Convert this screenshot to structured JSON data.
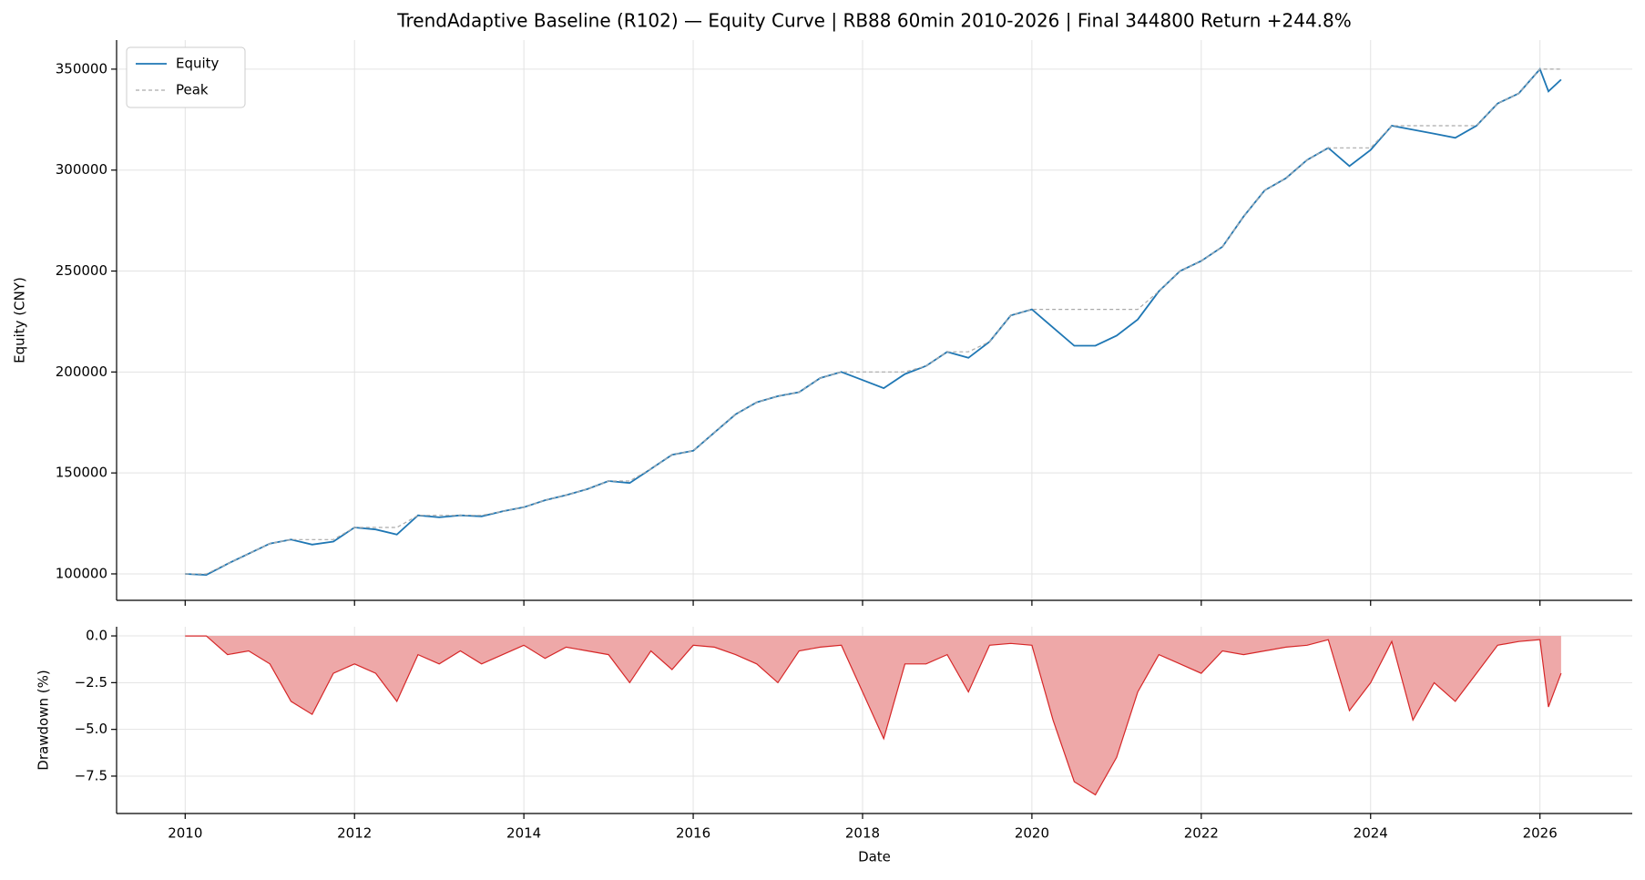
{
  "chart_data": [
    {
      "type": "line",
      "title": "TrendAdaptive Baseline (R102) — Equity Curve  |  RB88 60min 2010-2026  |  Final 344800  Return +244.8%",
      "ylabel": "Equity (CNY)",
      "legend": "upper left",
      "grid": true,
      "xlim": [
        2009.19,
        2027.09
      ],
      "xticks": [
        2010,
        2012,
        2014,
        2016,
        2018,
        2020,
        2022,
        2024,
        2026
      ],
      "ylim": [
        86900,
        364400
      ],
      "yticks": [
        100000,
        150000,
        200000,
        250000,
        300000,
        350000
      ],
      "x": [
        2010.0,
        2010.25,
        2010.5,
        2010.75,
        2011.0,
        2011.25,
        2011.5,
        2011.75,
        2012.0,
        2012.25,
        2012.5,
        2012.75,
        2013.0,
        2013.25,
        2013.5,
        2013.75,
        2014.0,
        2014.25,
        2014.5,
        2014.75,
        2015.0,
        2015.25,
        2015.5,
        2015.75,
        2016.0,
        2016.25,
        2016.5,
        2016.75,
        2017.0,
        2017.25,
        2017.5,
        2017.75,
        2018.0,
        2018.25,
        2018.5,
        2018.75,
        2019.0,
        2019.25,
        2019.5,
        2019.75,
        2020.0,
        2020.25,
        2020.5,
        2020.75,
        2021.0,
        2021.25,
        2021.5,
        2021.75,
        2022.0,
        2022.25,
        2022.5,
        2022.75,
        2023.0,
        2023.25,
        2023.5,
        2023.75,
        2024.0,
        2024.25,
        2024.5,
        2024.75,
        2025.0,
        2025.25,
        2025.5,
        2025.75,
        2026.0,
        2026.1,
        2026.25
      ],
      "series": [
        {
          "name": "Equity",
          "color": "#1f77b4",
          "style": "solid",
          "values": [
            100000,
            99500,
            105000,
            110000,
            115000,
            117000,
            114500,
            116000,
            123000,
            122000,
            119500,
            129000,
            128000,
            129000,
            128500,
            131000,
            133000,
            136500,
            139000,
            142000,
            146000,
            145000,
            152000,
            159000,
            161000,
            170000,
            179000,
            185000,
            188000,
            190000,
            197000,
            200000,
            196000,
            192000,
            199000,
            203000,
            210000,
            207000,
            215000,
            228000,
            231000,
            222000,
            213000,
            213000,
            218000,
            226000,
            240000,
            250000,
            255000,
            262000,
            277000,
            290000,
            296000,
            305000,
            311000,
            302000,
            310000,
            322000,
            320000,
            318000,
            316000,
            322000,
            333000,
            338000,
            350000,
            339000,
            344800
          ]
        },
        {
          "name": "Peak",
          "color": "#aaaaaa",
          "style": "dashed",
          "values": [
            100000,
            100000,
            105000,
            110000,
            115000,
            117000,
            117000,
            117000,
            123000,
            123000,
            123000,
            129000,
            129000,
            129000,
            129000,
            131000,
            133000,
            136500,
            139000,
            142000,
            146000,
            146000,
            152000,
            159000,
            161000,
            170000,
            179000,
            185000,
            188000,
            190000,
            197000,
            200000,
            200000,
            200000,
            200000,
            203000,
            210000,
            210000,
            215000,
            228000,
            231000,
            231000,
            231000,
            231000,
            231000,
            231000,
            240000,
            250000,
            255000,
            262000,
            277000,
            290000,
            296000,
            305000,
            311000,
            311000,
            311000,
            322000,
            322000,
            322000,
            322000,
            322000,
            333000,
            338000,
            350000,
            350000,
            350000
          ]
        }
      ]
    },
    {
      "type": "area",
      "xlabel": "Date",
      "ylabel": "Drawdown (%)",
      "grid": true,
      "color": "#d62728",
      "fill": "#eea8a8",
      "xlim": [
        2009.19,
        2027.09
      ],
      "xticks": [
        2010,
        2012,
        2014,
        2016,
        2018,
        2020,
        2022,
        2024,
        2026
      ],
      "ylim": [
        -9.5,
        0.49
      ],
      "yticks": [
        {
          "value": 0,
          "label": "0.0"
        },
        {
          "value": -2.5,
          "label": "−2.5"
        },
        {
          "value": -5,
          "label": "−5.0"
        },
        {
          "value": -7.5,
          "label": "−7.5"
        }
      ],
      "x": [
        2010.0,
        2010.25,
        2010.5,
        2010.75,
        2011.0,
        2011.25,
        2011.5,
        2011.75,
        2012.0,
        2012.25,
        2012.5,
        2012.75,
        2013.0,
        2013.25,
        2013.5,
        2013.75,
        2014.0,
        2014.25,
        2014.5,
        2014.75,
        2015.0,
        2015.25,
        2015.5,
        2015.75,
        2016.0,
        2016.25,
        2016.5,
        2016.75,
        2017.0,
        2017.25,
        2017.5,
        2017.75,
        2018.0,
        2018.25,
        2018.5,
        2018.75,
        2019.0,
        2019.25,
        2019.5,
        2019.75,
        2020.0,
        2020.25,
        2020.5,
        2020.75,
        2021.0,
        2021.25,
        2021.5,
        2021.75,
        2022.0,
        2022.25,
        2022.5,
        2022.75,
        2023.0,
        2023.25,
        2023.5,
        2023.75,
        2024.0,
        2024.25,
        2024.5,
        2024.75,
        2025.0,
        2025.25,
        2025.5,
        2025.75,
        2026.0,
        2026.1,
        2026.25
      ],
      "values": [
        0,
        0,
        -1.0,
        -0.8,
        -1.5,
        -3.5,
        -4.2,
        -2.0,
        -1.5,
        -2.0,
        -3.5,
        -1.0,
        -1.5,
        -0.8,
        -1.5,
        -1.0,
        -0.5,
        -1.2,
        -0.6,
        -0.8,
        -1.0,
        -2.5,
        -0.8,
        -1.8,
        -0.5,
        -0.6,
        -1.0,
        -1.5,
        -2.5,
        -0.8,
        -0.6,
        -0.5,
        -3.0,
        -5.5,
        -1.5,
        -1.5,
        -1.0,
        -3.0,
        -0.5,
        -0.4,
        -0.5,
        -4.5,
        -7.8,
        -8.5,
        -6.5,
        -3.0,
        -1.0,
        -1.5,
        -2.0,
        -0.8,
        -1.0,
        -0.8,
        -0.6,
        -0.5,
        -0.2,
        -4.0,
        -2.5,
        -0.3,
        -4.5,
        -2.5,
        -3.5,
        -2.0,
        -0.5,
        -0.3,
        -0.2,
        -3.8,
        -2.0
      ]
    }
  ]
}
